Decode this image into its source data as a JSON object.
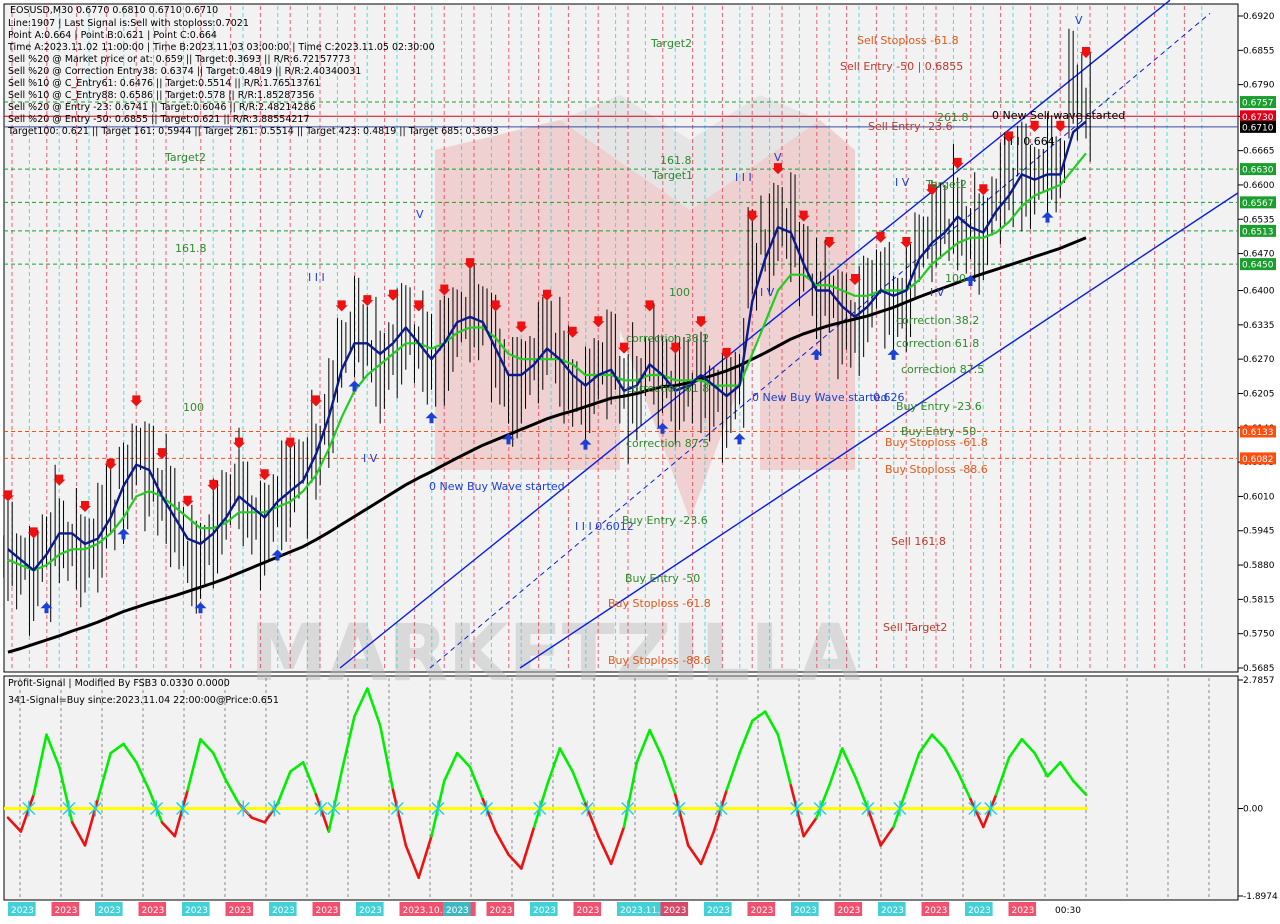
{
  "header": {
    "title": "EOSUSD,M30  0.6770 0.6810 0.6710 0.6710",
    "lines": [
      "Line:1907 | Last Signal is:Sell with stoploss:0.7021",
      "Point A:0.664 | Point B:0.621 | Point C:0.664",
      "Time A:2023.11.02 11:00:00 | Time B:2023.11.03 03:00:00 | Time C:2023.11.05 02:30:00",
      "Sell %20 @ Market price or at: 0.659 || Target:0.3693 || R/R:6.72157773",
      "Sell %20 @ Correction Entry38: 0.6374 || Target:0.4819 || R/R:2.40340031",
      "Sell %10 @ C_Entry61: 0.6476 || Target:0.5514 || R/R:1.76513761",
      "Sell %10 @ C_Entry88: 0.6586 || Target:0.578 || R/R:1.85287356",
      "Sell %20 @ Entry -23: 0.6741 || Target:0.6046 || R/R:2.48214286",
      "Sell %20 @ Entry -50: 0.6855 || Target:0.621 || R/R:3.88554217",
      "Target100: 0.621 || Target 161: 0.5944 || Target 261: 0.5514 || Target 423: 0.4819 || Target 685: 0.3693"
    ]
  },
  "indicator": {
    "title": "Profit-Signal | Modified By FSB3 0.0330 0.0000",
    "signal": "341-Signal=Buy since:2023.11.04 22:00:00@Price:0.651"
  },
  "price_axis": {
    "ticks": [
      "0.6920",
      "0.6855",
      "0.6790",
      "0.6730",
      "0.6665",
      "0.6600",
      "0.6535",
      "0.6470",
      "0.6400",
      "0.6335",
      "0.6270",
      "0.6205",
      "0.6140",
      "0.6075",
      "0.6010",
      "0.5945",
      "0.5880",
      "0.5815",
      "0.5750",
      "0.5685"
    ],
    "tags": [
      {
        "label": "0.6757",
        "color": "#1a9e2e"
      },
      {
        "label": "0.6730",
        "color": "#e0001a"
      },
      {
        "label": "0.6710",
        "color": "#000000"
      },
      {
        "label": "0.6630",
        "color": "#1a9e2e"
      },
      {
        "label": "0.6567",
        "color": "#1a9e2e"
      },
      {
        "label": "0.6513",
        "color": "#1a9e2e"
      },
      {
        "label": "0.6450",
        "color": "#1a9e2e"
      },
      {
        "label": "0.6133",
        "color": "#ff4d10"
      },
      {
        "label": "0.6082",
        "color": "#ff4d10"
      }
    ]
  },
  "indicator_axis": {
    "ticks": [
      "2.7857",
      "0.00",
      "-1.8974"
    ]
  },
  "time_axis": {
    "labels": [
      "2023",
      "2023",
      "2023",
      "2023",
      "2023",
      "2023",
      "2023",
      "2023",
      "2023",
      "2023.10.29 18",
      "2023",
      "2023",
      "2023",
      "2023",
      "2023.11.01 0",
      "2023",
      "2023",
      "2023",
      "2023",
      "2023",
      "2023",
      "2023",
      "2023",
      "2023"
    ],
    "last": "00:30"
  },
  "watermark": "MARKETZILLA",
  "annotations": [
    {
      "text": "Target2",
      "color": "#2e8b2e"
    },
    {
      "text": "Target2",
      "color": "#2e8b2e"
    },
    {
      "text": "161.8",
      "color": "#2e8b2e"
    },
    {
      "text": "100",
      "color": "#2e8b2e"
    },
    {
      "text": "161.8",
      "color": "#2e8b2e"
    },
    {
      "text": "Target1",
      "color": "#2e8b2e"
    },
    {
      "text": "100",
      "color": "#2e8b2e"
    },
    {
      "text": "correction 38.2",
      "color": "#2e8b2e"
    },
    {
      "text": "correction 61.8",
      "color": "#2e8b2e"
    },
    {
      "text": "correction 87.5",
      "color": "#2e8b2e"
    },
    {
      "text": "0 New Buy Wave started",
      "color": "#1c3fd6"
    },
    {
      "text": "I I I 0.6012",
      "color": "#1c3fd6"
    },
    {
      "text": "Buy Entry -23.6",
      "color": "#2e8b2e"
    },
    {
      "text": "Buy Entry -50",
      "color": "#2e8b2e"
    },
    {
      "text": "Buy Stoploss -61.8",
      "color": "#e05a1a"
    },
    {
      "text": "Buy Stoploss -88.6",
      "color": "#e05a1a"
    },
    {
      "text": "Sell Stoploss -61.8",
      "color": "#e05a1a"
    },
    {
      "text": "Sell Entry -50 | 0.6855",
      "color": "#c0392b"
    },
    {
      "text": "261.8",
      "color": "#2e8b2e"
    },
    {
      "text": "0 New Sell wave started",
      "color": "#000000"
    },
    {
      "text": "Sell Entry -23.6",
      "color": "#c0392b"
    },
    {
      "text": "I I I 0.664",
      "color": "#000000"
    },
    {
      "text": "Target2",
      "color": "#2e8b2e"
    },
    {
      "text": "100",
      "color": "#2e8b2e"
    },
    {
      "text": "correction 38.2",
      "color": "#2e8b2e"
    },
    {
      "text": "correction 61.8",
      "color": "#2e8b2e"
    },
    {
      "text": "correction 87.5",
      "color": "#2e8b2e"
    },
    {
      "text": "0 New Buy Wave started",
      "color": "#1c3fd6"
    },
    {
      "text": "0.626",
      "color": "#1c3fd6"
    },
    {
      "text": "Buy Entry -23.6",
      "color": "#2e8b2e"
    },
    {
      "text": "Buy Entry -50",
      "color": "#2e8b2e"
    },
    {
      "text": "Buy Stoploss -61.8",
      "color": "#e05a1a"
    },
    {
      "text": "Buy Stoploss -88.6",
      "color": "#e05a1a"
    },
    {
      "text": "Sell 161.8",
      "color": "#c0392b"
    },
    {
      "text": "Sell Target2",
      "color": "#c0392b"
    },
    {
      "text": "I V",
      "color": "#1c3fd6"
    },
    {
      "text": "I I I",
      "color": "#1c3fd6"
    },
    {
      "text": "V",
      "color": "#1c3fd6"
    },
    {
      "text": "I I I",
      "color": "#1c3fd6"
    },
    {
      "text": "V",
      "color": "#1c3fd6"
    },
    {
      "text": "I V",
      "color": "#1c3fd6"
    },
    {
      "text": "I V",
      "color": "#1c3fd6"
    },
    {
      "text": "V",
      "color": "#1c3fd6"
    },
    {
      "text": "I V",
      "color": "#1c3fd6"
    }
  ],
  "colors": {
    "bg": "#ffffff",
    "plot_bg": "#f2f2f2",
    "grid": "#cccccc",
    "blue_channel": "#0a1fe0",
    "ma_fast": "#0b1a8c",
    "ma_mid": "#22cc22",
    "ma_slow": "#000000",
    "osc_pos": "#00ee00",
    "osc_neg": "#ee1111",
    "zero_line": "#ffff00"
  },
  "chart_data": {
    "type": "line",
    "symbol": "EOSUSD",
    "timeframe": "M30",
    "ohlc_last": {
      "open": 0.677,
      "high": 0.681,
      "low": 0.671,
      "close": 0.671
    },
    "price_ylim": [
      0.5685,
      0.692
    ],
    "price_close": [
      0.592,
      0.588,
      0.585,
      0.59,
      0.595,
      0.593,
      0.59,
      0.592,
      0.598,
      0.604,
      0.61,
      0.606,
      0.6,
      0.596,
      0.591,
      0.59,
      0.594,
      0.598,
      0.602,
      0.598,
      0.596,
      0.6,
      0.602,
      0.605,
      0.61,
      0.618,
      0.628,
      0.632,
      0.629,
      0.626,
      0.63,
      0.633,
      0.628,
      0.626,
      0.631,
      0.635,
      0.636,
      0.634,
      0.628,
      0.622,
      0.624,
      0.627,
      0.63,
      0.626,
      0.623,
      0.621,
      0.625,
      0.626,
      0.62,
      0.622,
      0.628,
      0.624,
      0.62,
      0.622,
      0.625,
      0.621,
      0.619,
      0.622,
      0.645,
      0.65,
      0.654,
      0.652,
      0.645,
      0.638,
      0.64,
      0.636,
      0.633,
      0.637,
      0.641,
      0.638,
      0.64,
      0.648,
      0.65,
      0.652,
      0.655,
      0.652,
      0.65,
      0.656,
      0.66,
      0.664,
      0.662,
      0.664,
      0.662,
      0.678,
      0.676
    ],
    "ma_fast": [
      0.591,
      0.589,
      0.587,
      0.59,
      0.594,
      0.594,
      0.592,
      0.593,
      0.597,
      0.603,
      0.607,
      0.606,
      0.601,
      0.597,
      0.593,
      0.592,
      0.594,
      0.597,
      0.601,
      0.599,
      0.597,
      0.6,
      0.602,
      0.604,
      0.609,
      0.616,
      0.625,
      0.63,
      0.63,
      0.628,
      0.63,
      0.633,
      0.63,
      0.627,
      0.63,
      0.634,
      0.635,
      0.634,
      0.629,
      0.624,
      0.624,
      0.626,
      0.629,
      0.627,
      0.624,
      0.622,
      0.624,
      0.625,
      0.621,
      0.622,
      0.626,
      0.624,
      0.621,
      0.622,
      0.624,
      0.622,
      0.62,
      0.622,
      0.638,
      0.646,
      0.652,
      0.651,
      0.645,
      0.64,
      0.64,
      0.637,
      0.635,
      0.637,
      0.64,
      0.639,
      0.64,
      0.646,
      0.649,
      0.651,
      0.654,
      0.652,
      0.651,
      0.655,
      0.658,
      0.662,
      0.661,
      0.662,
      0.662,
      0.67,
      0.672
    ],
    "ma_mid": [
      0.589,
      0.588,
      0.587,
      0.588,
      0.59,
      0.591,
      0.591,
      0.592,
      0.594,
      0.597,
      0.601,
      0.602,
      0.601,
      0.599,
      0.597,
      0.595,
      0.595,
      0.596,
      0.598,
      0.598,
      0.598,
      0.599,
      0.6,
      0.602,
      0.605,
      0.61,
      0.616,
      0.621,
      0.624,
      0.626,
      0.628,
      0.63,
      0.63,
      0.629,
      0.63,
      0.632,
      0.633,
      0.633,
      0.631,
      0.628,
      0.627,
      0.627,
      0.627,
      0.627,
      0.626,
      0.624,
      0.624,
      0.624,
      0.623,
      0.623,
      0.624,
      0.624,
      0.623,
      0.623,
      0.623,
      0.622,
      0.622,
      0.622,
      0.628,
      0.634,
      0.64,
      0.643,
      0.643,
      0.641,
      0.641,
      0.64,
      0.639,
      0.639,
      0.64,
      0.64,
      0.64,
      0.642,
      0.645,
      0.647,
      0.649,
      0.65,
      0.65,
      0.651,
      0.653,
      0.656,
      0.658,
      0.659,
      0.66,
      0.663,
      0.666
    ],
    "ma_slow": [
      0.5715,
      0.5722,
      0.573,
      0.5738,
      0.5746,
      0.5755,
      0.5763,
      0.5772,
      0.5782,
      0.5792,
      0.58,
      0.5808,
      0.5815,
      0.5822,
      0.583,
      0.5838,
      0.5846,
      0.5855,
      0.5865,
      0.5875,
      0.5885,
      0.5895,
      0.5905,
      0.5915,
      0.5928,
      0.5942,
      0.5957,
      0.5972,
      0.5987,
      0.6002,
      0.6017,
      0.6032,
      0.6045,
      0.6057,
      0.607,
      0.6083,
      0.6095,
      0.6107,
      0.6117,
      0.6127,
      0.6137,
      0.6147,
      0.6157,
      0.6165,
      0.6172,
      0.618,
      0.6188,
      0.6196,
      0.62,
      0.6205,
      0.6212,
      0.6218,
      0.622,
      0.6225,
      0.6232,
      0.624,
      0.6248,
      0.6258,
      0.627,
      0.6282,
      0.6295,
      0.6308,
      0.6318,
      0.6326,
      0.6334,
      0.634,
      0.6346,
      0.6352,
      0.636,
      0.6368,
      0.6378,
      0.6388,
      0.6397,
      0.6406,
      0.6415,
      0.6424,
      0.6432,
      0.644,
      0.6448,
      0.6456,
      0.6464,
      0.6472,
      0.648,
      0.649,
      0.65
    ],
    "channel": {
      "lower_start": [
        0.566,
        0.5685
      ],
      "lower_end": [
        0.662,
        0.647
      ],
      "upper_offset": 0.02
    },
    "hlines": [
      {
        "value": 0.6757,
        "color": "#1a9e2e",
        "style": "dash"
      },
      {
        "value": 0.673,
        "color": "#e0001a",
        "style": "solid"
      },
      {
        "value": 0.671,
        "color": "#3a4a9a",
        "style": "solid"
      },
      {
        "value": 0.663,
        "color": "#1a9e2e",
        "style": "dash"
      },
      {
        "value": 0.6567,
        "color": "#1a9e2e",
        "style": "dash"
      },
      {
        "value": 0.6513,
        "color": "#1a9e2e",
        "style": "dash"
      },
      {
        "value": 0.645,
        "color": "#1a9e2e",
        "style": "dash"
      },
      {
        "value": 0.6133,
        "color": "#ff4d10",
        "style": "dash"
      },
      {
        "value": 0.6082,
        "color": "#ff4d10",
        "style": "dash"
      }
    ],
    "oscillator": {
      "ylim": [
        -1.8974,
        2.7857
      ],
      "values": [
        -0.2,
        -0.5,
        0.3,
        1.6,
        0.9,
        -0.3,
        -0.8,
        0.2,
        1.2,
        1.4,
        1.0,
        0.4,
        -0.3,
        -0.6,
        0.4,
        1.5,
        1.2,
        0.6,
        0.1,
        -0.2,
        -0.3,
        0.1,
        0.8,
        1.0,
        0.3,
        -0.5,
        0.8,
        2.0,
        2.6,
        1.8,
        0.4,
        -0.8,
        -1.5,
        -0.6,
        0.6,
        1.2,
        0.9,
        0.2,
        -0.5,
        -1.0,
        -1.3,
        -0.4,
        0.5,
        1.3,
        0.8,
        0.1,
        -0.6,
        -1.2,
        -0.4,
        1.0,
        1.7,
        1.1,
        0.3,
        -0.8,
        -1.2,
        -0.5,
        0.4,
        1.2,
        1.9,
        2.1,
        1.6,
        0.5,
        -0.6,
        -0.2,
        0.5,
        1.3,
        0.7,
        0.0,
        -0.8,
        -0.4,
        0.4,
        1.2,
        1.6,
        1.3,
        0.8,
        0.2,
        -0.4,
        0.3,
        1.1,
        1.5,
        1.2,
        0.7,
        1.0,
        0.6,
        0.3
      ]
    }
  }
}
